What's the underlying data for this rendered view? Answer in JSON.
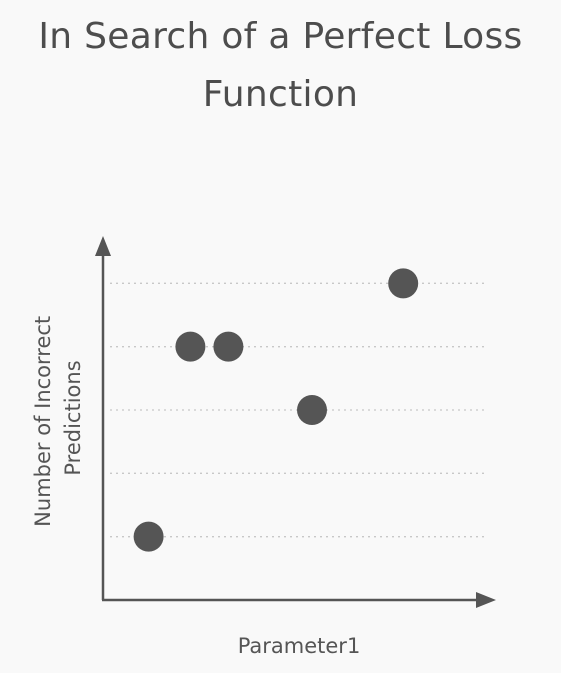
{
  "title": {
    "line1": "In Search of a Perfect Loss",
    "line2": "Function"
  },
  "chart_data": {
    "type": "scatter",
    "title": "In Search of a Perfect Loss Function",
    "xlabel": "Parameter1",
    "ylabel_lines": [
      "Number of Incorrect",
      "Predictions"
    ],
    "xlim": [
      0,
      10
    ],
    "ylim": [
      0,
      6
    ],
    "grid": "horizontal dotted",
    "gridlines_y": [
      1,
      2,
      3,
      4,
      5
    ],
    "points": [
      {
        "x": 1.2,
        "y": 1
      },
      {
        "x": 2.3,
        "y": 4
      },
      {
        "x": 3.3,
        "y": 4
      },
      {
        "x": 5.5,
        "y": 3
      },
      {
        "x": 7.9,
        "y": 5
      }
    ],
    "colors": {
      "point": "#555555",
      "axis": "#555555",
      "grid": "#c8c8c8"
    }
  }
}
